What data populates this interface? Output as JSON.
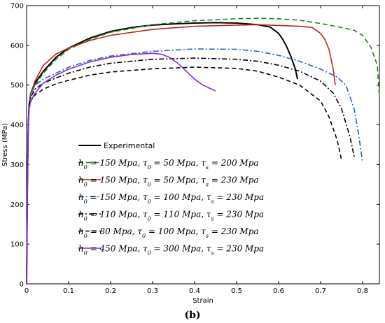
{
  "chart_data": {
    "type": "line",
    "title": "",
    "xlabel": "Strain",
    "ylabel": "Stress (MPa)",
    "xlim": [
      0,
      0.84
    ],
    "ylim": [
      0,
      700
    ],
    "xticks": [
      0,
      0.1,
      0.2,
      0.3,
      0.4,
      0.5,
      0.6,
      0.7,
      0.8
    ],
    "yticks": [
      0,
      100,
      200,
      300,
      400,
      500,
      600,
      700
    ],
    "grid": false,
    "legend_position": "center-left",
    "caption": "(b)",
    "series": [
      {
        "name": "Experimental",
        "color": "#000000",
        "dash": "solid",
        "x": [
          0,
          0.002,
          0.004,
          0.006,
          0.01,
          0.02,
          0.04,
          0.07,
          0.1,
          0.15,
          0.2,
          0.25,
          0.3,
          0.35,
          0.4,
          0.45,
          0.5,
          0.55,
          0.58,
          0.6,
          0.61,
          0.62,
          0.63,
          0.64,
          0.645
        ],
        "y": [
          0,
          250,
          400,
          450,
          480,
          505,
          535,
          570,
          593,
          618,
          635,
          645,
          651,
          654,
          656,
          657,
          656,
          652,
          646,
          630,
          615,
          595,
          570,
          540,
          515
        ]
      },
      {
        "name": "h0=150, τ0=50, τs=200",
        "label_parts": [
          "150 ",
          "50 ",
          "200 "
        ],
        "color": "#2e7d1f",
        "dash": "7,4",
        "x": [
          0,
          0.002,
          0.004,
          0.006,
          0.01,
          0.02,
          0.04,
          0.07,
          0.1,
          0.15,
          0.2,
          0.3,
          0.4,
          0.5,
          0.55,
          0.6,
          0.65,
          0.7,
          0.75,
          0.78,
          0.8,
          0.82,
          0.835,
          0.84
        ],
        "y": [
          0,
          250,
          400,
          450,
          475,
          500,
          530,
          565,
          590,
          615,
          633,
          652,
          662,
          667,
          668,
          667,
          663,
          655,
          645,
          638,
          625,
          595,
          550,
          470
        ]
      },
      {
        "name": "h0=150, τ0=50, τs=230",
        "label_parts": [
          "150 ",
          "50 ",
          "230 "
        ],
        "color": "#b22a1a",
        "dash": "solid",
        "x": [
          0,
          0.002,
          0.004,
          0.006,
          0.01,
          0.02,
          0.04,
          0.07,
          0.1,
          0.15,
          0.2,
          0.3,
          0.4,
          0.5,
          0.55,
          0.6,
          0.65,
          0.68,
          0.7,
          0.71,
          0.72,
          0.73,
          0.735
        ],
        "y": [
          0,
          250,
          400,
          450,
          480,
          510,
          550,
          578,
          593,
          612,
          625,
          640,
          648,
          651,
          652,
          650,
          648,
          645,
          630,
          615,
          590,
          540,
          500
        ]
      },
      {
        "name": "h0=150, τ0=100, τs=230",
        "label_parts": [
          "150 ",
          "100 ",
          "230 "
        ],
        "color": "#2a63b8",
        "dash": "8,3,2,3",
        "x": [
          0,
          0.002,
          0.004,
          0.006,
          0.01,
          0.02,
          0.04,
          0.07,
          0.1,
          0.15,
          0.2,
          0.3,
          0.4,
          0.5,
          0.55,
          0.6,
          0.65,
          0.7,
          0.74,
          0.76,
          0.78,
          0.79,
          0.8
        ],
        "y": [
          0,
          250,
          400,
          450,
          480,
          500,
          515,
          530,
          545,
          562,
          573,
          585,
          591,
          590,
          585,
          575,
          560,
          540,
          520,
          500,
          440,
          380,
          305
        ]
      },
      {
        "name": "h0=110, τ0=110, τs=230",
        "label_parts": [
          "110 ",
          "110 ",
          "230 "
        ],
        "color": "#000000",
        "dash": "7,3,2,3",
        "x": [
          0,
          0.002,
          0.004,
          0.006,
          0.01,
          0.02,
          0.04,
          0.07,
          0.1,
          0.15,
          0.2,
          0.3,
          0.4,
          0.5,
          0.55,
          0.6,
          0.65,
          0.7,
          0.73,
          0.75,
          0.77,
          0.78
        ],
        "y": [
          0,
          250,
          400,
          450,
          470,
          490,
          505,
          518,
          530,
          545,
          555,
          565,
          568,
          565,
          560,
          550,
          535,
          510,
          480,
          440,
          370,
          320
        ]
      },
      {
        "name": "h0=80, τ0=100, τs=230",
        "label_parts": [
          " 80 ",
          "100 ",
          "230 "
        ],
        "color": "#000000",
        "dash": "6,4",
        "x": [
          0,
          0.002,
          0.004,
          0.006,
          0.01,
          0.02,
          0.04,
          0.07,
          0.1,
          0.15,
          0.2,
          0.3,
          0.4,
          0.5,
          0.55,
          0.6,
          0.65,
          0.7,
          0.72,
          0.74,
          0.75
        ],
        "y": [
          0,
          250,
          400,
          440,
          460,
          475,
          490,
          503,
          512,
          525,
          533,
          541,
          545,
          542,
          535,
          520,
          500,
          460,
          420,
          360,
          310
        ]
      },
      {
        "name": "h0=450, τ0=300, τs=230",
        "label_parts": [
          "450 ",
          "300 ",
          "230 "
        ],
        "color": "#8a2be2",
        "dash": "solid",
        "x": [
          0,
          0.002,
          0.004,
          0.006,
          0.01,
          0.02,
          0.04,
          0.07,
          0.1,
          0.15,
          0.2,
          0.25,
          0.3,
          0.32,
          0.34,
          0.36,
          0.38,
          0.4,
          0.42,
          0.45
        ],
        "y": [
          0,
          250,
          400,
          440,
          460,
          480,
          505,
          525,
          540,
          558,
          570,
          577,
          580,
          578,
          570,
          555,
          535,
          515,
          500,
          485
        ]
      }
    ]
  }
}
